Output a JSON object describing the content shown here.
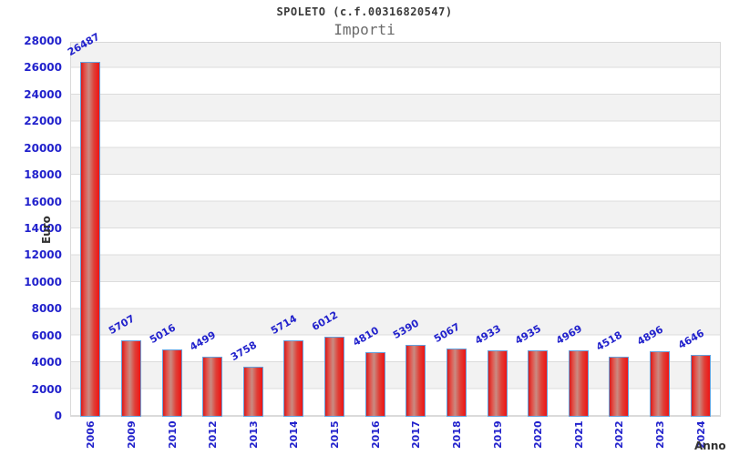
{
  "chart_data": {
    "type": "bar",
    "title": "SPOLETO (c.f.00316820547)",
    "subtitle": "Importi",
    "xlabel": "Anno",
    "ylabel": "Euro",
    "categories": [
      "2006",
      "2009",
      "2010",
      "2012",
      "2013",
      "2014",
      "2015",
      "2016",
      "2017",
      "2018",
      "2019",
      "2020",
      "2021",
      "2022",
      "2023",
      "2024"
    ],
    "values": [
      26487,
      5707,
      5016,
      4499,
      3758,
      5714,
      6012,
      4810,
      5390,
      5067,
      4933,
      4935,
      4969,
      4518,
      4896,
      4646
    ],
    "ylim": [
      0,
      28000
    ],
    "ytick_step": 2000,
    "grid": "horizontal-bands",
    "legend": "none",
    "colors": {
      "bar_fill_dark": "#d81a1a",
      "bar_fill_light": "#c98b82",
      "bar_border": "#64a0dc",
      "tick_label": "#2222cc",
      "value_label": "#2222cc",
      "band_gray": "#f2f2f2",
      "band_white": "#ffffff",
      "axis_title": "#333333",
      "title_text": "#3a3a3a",
      "subtitle_text": "#6b6b6b"
    }
  }
}
